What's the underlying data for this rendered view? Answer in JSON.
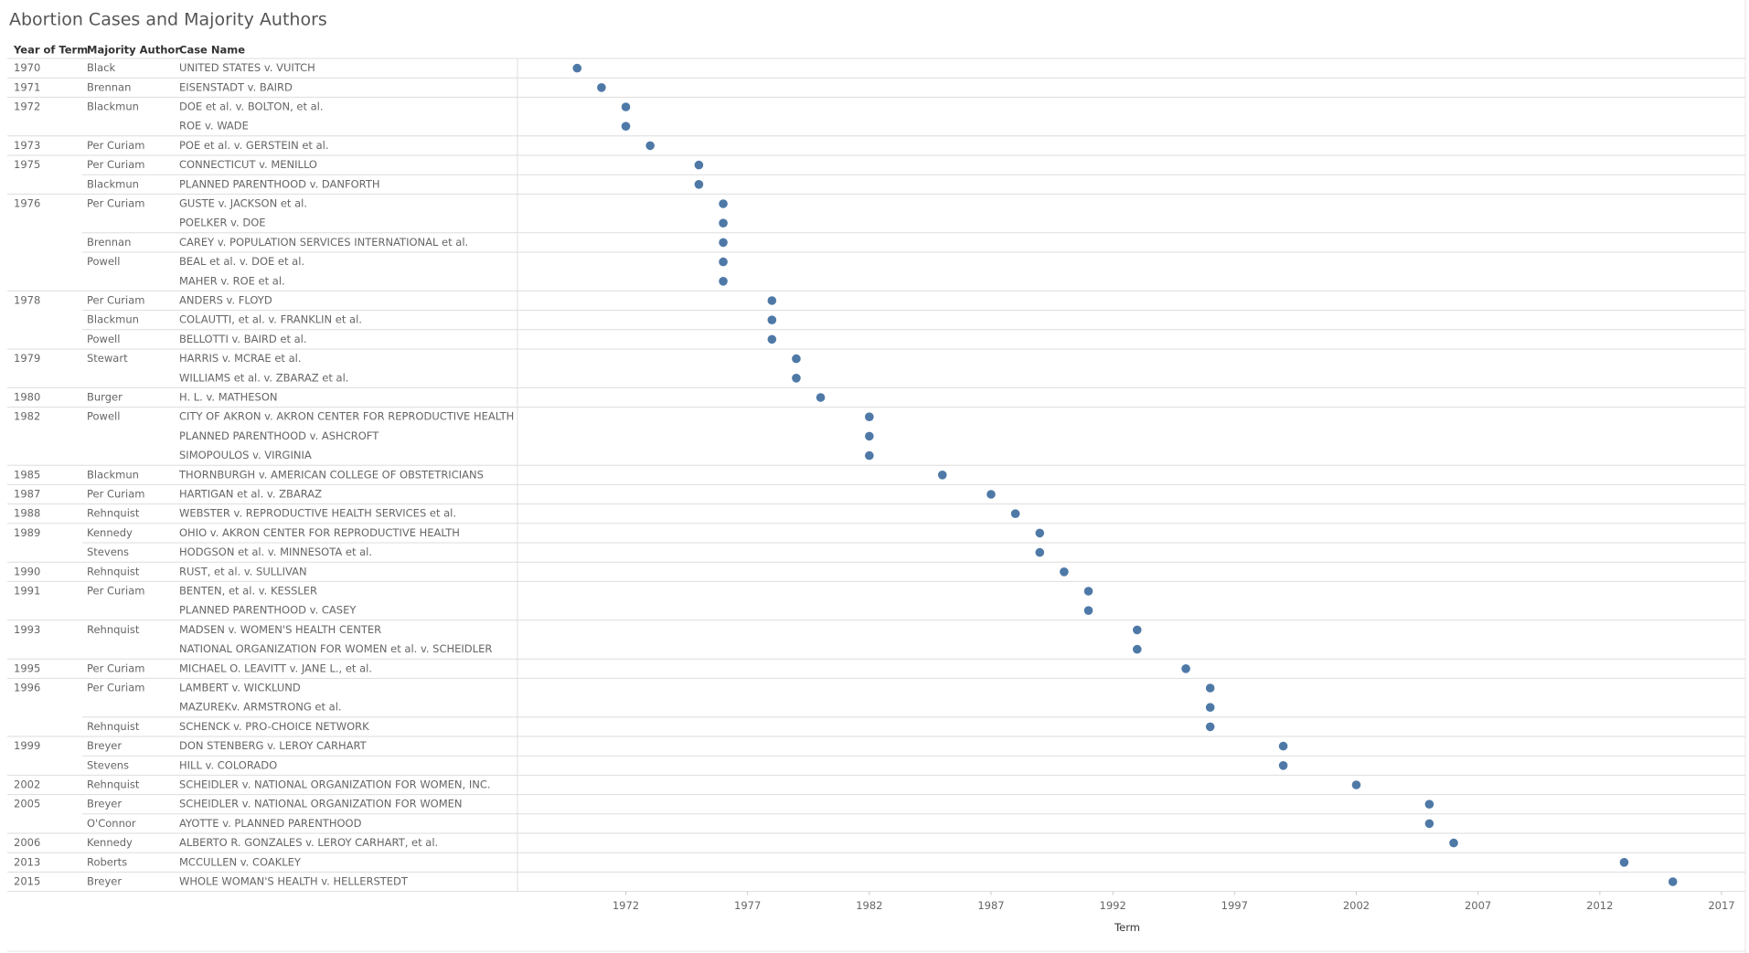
{
  "chart_data": {
    "type": "dot-table",
    "title": "Abortion Cases and Majority Authors",
    "columns": [
      "Year of Term",
      "Majority Author",
      "Case Name"
    ],
    "years": [
      "1970",
      "1971",
      "1972",
      null,
      "1973",
      "1975",
      null,
      "1976",
      null,
      null,
      null,
      null,
      "1978",
      null,
      null,
      "1979",
      null,
      "1980",
      "1982",
      null,
      null,
      "1985",
      "1987",
      "1988",
      "1989",
      null,
      "1990",
      "1991",
      null,
      "1993",
      null,
      "1995",
      "1996",
      null,
      null,
      "1999",
      null,
      "2002",
      "2005",
      null,
      "2006",
      "2013",
      "2015"
    ],
    "authors": [
      "Black",
      "Brennan",
      "Blackmun",
      null,
      "Per Curiam",
      "Per Curiam",
      "Blackmun",
      "Per Curiam",
      null,
      "Brennan",
      "Powell",
      null,
      "Per Curiam",
      "Blackmun",
      "Powell",
      "Stewart",
      null,
      "Burger",
      "Powell",
      null,
      null,
      "Blackmun",
      "Per Curiam",
      "Rehnquist",
      "Kennedy",
      "Stevens",
      "Rehnquist",
      "Per Curiam",
      null,
      "Rehnquist",
      null,
      "Per Curiam",
      "Per Curiam",
      null,
      "Rehnquist",
      "Breyer",
      "Stevens",
      "Rehnquist",
      "Breyer",
      "O'Connor",
      "Kennedy",
      "Roberts",
      "Breyer"
    ],
    "cases": [
      "UNITED STATES v. VUITCH",
      "EISENSTADT v. BAIRD",
      "DOE et al. v. BOLTON, et al.",
      "ROE v. WADE",
      "POE et al. v. GERSTEIN et al.",
      "CONNECTICUT v. MENILLO",
      "PLANNED PARENTHOOD v. DANFORTH",
      "GUSTE v. JACKSON et al.",
      "POELKER v. DOE",
      "CAREY v. POPULATION SERVICES INTERNATIONAL et al.",
      "BEAL et al. v. DOE et al.",
      "MAHER v. ROE et al.",
      "ANDERS v. FLOYD",
      "COLAUTTI, et al. v. FRANKLIN et al.",
      "BELLOTTI  v. BAIRD et al.",
      "HARRIS  v. MCRAE et al.",
      "WILLIAMS et al. v. ZBARAZ et al.",
      "H. L. v. MATHESON",
      "CITY OF AKRON v. AKRON CENTER FOR REPRODUCTIVE HEALTH",
      "PLANNED PARENTHOOD v. ASHCROFT",
      "SIMOPOULOS v. VIRGINIA",
      "THORNBURGH  v. AMERICAN COLLEGE OF OBSTETRICIANS",
      "HARTIGAN et al. v.  ZBARAZ",
      "WEBSTER v. REPRODUCTIVE HEALTH SERVICES et al.",
      "OHIO v. AKRON CENTER FOR REPRODUCTIVE HEALTH",
      "HODGSON et al. v. MINNESOTA et al.",
      "RUST, et al. v. SULLIVAN",
      "BENTEN, et al. v. KESSLER",
      "PLANNED PARENTHOOD v. CASEY",
      "MADSEN v. WOMEN'S HEALTH CENTER",
      "NATIONAL ORGANIZATION FOR WOMEN et al. v. SCHEIDLER",
      "MICHAEL O. LEAVITT v. JANE L., et al.",
      "LAMBERT v. WICKLUND",
      "MAZUREKv. ARMSTRONG et al.",
      "SCHENCK v. PRO-CHOICE NETWORK",
      "DON STENBERG v. LEROY CARHART",
      "HILL v. COLORADO",
      "SCHEIDLER v. NATIONAL ORGANIZATION FOR WOMEN, INC.",
      "SCHEIDLER v. NATIONAL ORGANIZATION FOR WOMEN",
      "AYOTTE v. PLANNED PARENTHOOD",
      "ALBERTO R. GONZALES v. LEROY CARHART, et al.",
      "MCCULLEN v. COAKLEY",
      "WHOLE WOMAN'S HEALTH v. HELLERSTEDT"
    ],
    "x": [
      1970,
      1971,
      1972,
      1972,
      1973,
      1975,
      1975,
      1976,
      1976,
      1976,
      1976,
      1976,
      1978,
      1978,
      1978,
      1979,
      1979,
      1980,
      1982,
      1982,
      1982,
      1985,
      1987,
      1988,
      1989,
      1989,
      1990,
      1991,
      1991,
      1993,
      1993,
      1995,
      1996,
      1996,
      1996,
      1999,
      1999,
      2002,
      2005,
      2005,
      2006,
      2013,
      2015
    ],
    "color": "#4e79a7",
    "xlim": [
      1967.55,
      2017.64
    ],
    "xticks": [
      1972,
      1977,
      1982,
      1987,
      1992,
      1997,
      2002,
      2007,
      2012,
      2017
    ],
    "xlabel": "Term"
  }
}
